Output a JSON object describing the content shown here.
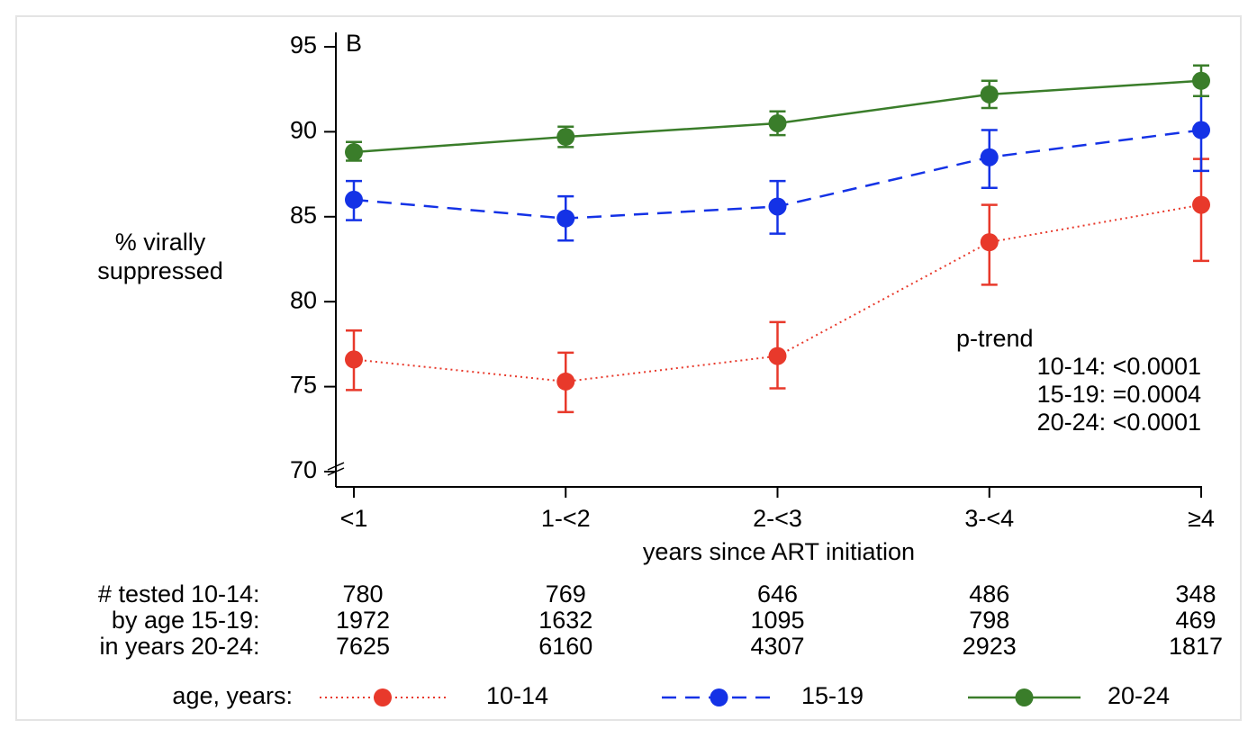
{
  "chart_data": {
    "type": "line",
    "panel_label": "B",
    "ylabel": [
      "% virally",
      "suppressed"
    ],
    "xlabel": "years since ART initiation",
    "categories": [
      "<1",
      "1-<2",
      "2-<3",
      "3-<4",
      "≥4"
    ],
    "ylim": [
      70,
      95
    ],
    "yticks": [
      70,
      75,
      80,
      85,
      90,
      95
    ],
    "series": [
      {
        "name": "10-14",
        "color": "#e8392b",
        "dash": "dotted",
        "values": [
          76.6,
          75.3,
          76.8,
          83.5,
          85.7
        ],
        "ci_low": [
          74.8,
          73.5,
          74.9,
          81.0,
          82.4
        ],
        "ci_high": [
          78.3,
          77.0,
          78.8,
          85.7,
          88.4
        ]
      },
      {
        "name": "15-19",
        "color": "#1432e6",
        "dash": "dashed",
        "values": [
          86.0,
          84.9,
          85.6,
          88.5,
          90.1
        ],
        "ci_low": [
          84.8,
          83.6,
          84.0,
          86.7,
          87.7
        ],
        "ci_high": [
          87.1,
          86.2,
          87.1,
          90.1,
          92.1
        ]
      },
      {
        "name": "20-24",
        "color": "#3a7d2a",
        "dash": "solid",
        "values": [
          88.8,
          89.7,
          90.5,
          92.2,
          93.0
        ],
        "ci_low": [
          88.3,
          89.1,
          89.8,
          91.4,
          92.1
        ],
        "ci_high": [
          89.4,
          90.3,
          91.2,
          93.0,
          93.9
        ]
      }
    ],
    "annotation": [
      "p-trend",
      "10-14: <0.0001",
      "15-19: =0.0004",
      "20-24: <0.0001"
    ],
    "counts_table": {
      "row_labels": [
        "# tested",
        "by age",
        "in years"
      ],
      "row_groups": [
        "10-14:",
        "15-19:",
        "20-24:"
      ],
      "rows": [
        [
          780,
          769,
          646,
          486,
          348
        ],
        [
          1972,
          1632,
          1095,
          798,
          469
        ],
        [
          7625,
          6160,
          4307,
          2923,
          1817
        ]
      ]
    },
    "legend_title": "age, years:"
  }
}
